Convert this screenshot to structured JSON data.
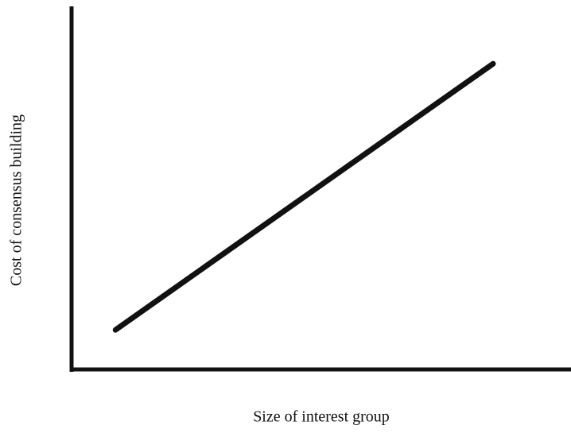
{
  "chart_data": {
    "type": "line",
    "x_label": "Size of interest group",
    "y_label": "Cost of consensus building",
    "x": [
      8.8,
      84.4
    ],
    "series": [
      {
        "color": "#111111",
        "values": [
          10.9,
          84.2
        ]
      }
    ],
    "xlim": [
      0,
      100
    ],
    "ylim": [
      0,
      100
    ]
  }
}
